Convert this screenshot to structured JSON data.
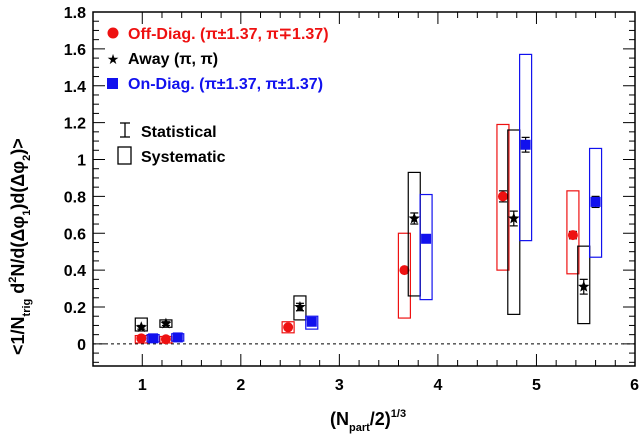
{
  "chart_data": {
    "type": "scatter",
    "xlabel": {
      "base": "(N",
      "sub": "part",
      "mid": "/2)",
      "sup": "1/3"
    },
    "ylabel": {
      "a": "<1/N",
      "a_sub": "trig",
      "b": " d",
      "b_sup": "2",
      "c": "N/d(Δφ",
      "c_sub": "1",
      "d": ")d(Δφ",
      "d_sub": "2",
      "e": ")>"
    },
    "xlim": [
      0.5,
      6
    ],
    "ylim": [
      -0.12,
      1.8
    ],
    "xticks": [
      "1",
      "2",
      "3",
      "4",
      "5",
      "6"
    ],
    "yticks": [
      "0",
      "0.2",
      "0.4",
      "0.6",
      "0.8",
      "1",
      "1.2",
      "1.4",
      "1.6",
      "1.8"
    ],
    "reference_line": {
      "y": 0,
      "style": "dashed"
    },
    "legend_position": "top-left",
    "series": [
      {
        "name": "Off-Diag.",
        "name_suffix": "(π±1.37, π∓1.37)",
        "color": "#ee1111",
        "marker": "circle",
        "points": [
          {
            "x": 0.99,
            "y": 0.03,
            "stat": 0.008,
            "sys": [
              0.005,
              0.045
            ]
          },
          {
            "x": 1.24,
            "y": 0.025,
            "stat": 0.008,
            "sys": [
              0.005,
              0.04
            ]
          },
          {
            "x": 2.48,
            "y": 0.09,
            "stat": 0.01,
            "sys": [
              0.06,
              0.12
            ]
          },
          {
            "x": 3.66,
            "y": 0.4,
            "stat": 0.01,
            "sys": [
              0.14,
              0.6
            ]
          },
          {
            "x": 4.66,
            "y": 0.8,
            "stat": 0.03,
            "sys": [
              0.4,
              1.19
            ]
          },
          {
            "x": 5.37,
            "y": 0.59,
            "stat": 0.02,
            "sys": [
              0.38,
              0.83
            ]
          }
        ]
      },
      {
        "name": "Away",
        "name_suffix": "(π, π)",
        "color": "#000000",
        "marker": "star",
        "points": [
          {
            "x": 0.99,
            "y": 0.09,
            "stat": 0.01,
            "sys": [
              0.07,
              0.14
            ]
          },
          {
            "x": 1.24,
            "y": 0.11,
            "stat": 0.01,
            "sys": [
              0.09,
              0.13
            ]
          },
          {
            "x": 2.6,
            "y": 0.2,
            "stat": 0.02,
            "sys": [
              0.13,
              0.26
            ]
          },
          {
            "x": 3.76,
            "y": 0.68,
            "stat": 0.03,
            "sys": [
              0.26,
              0.93
            ]
          },
          {
            "x": 4.77,
            "y": 0.68,
            "stat": 0.04,
            "sys": [
              0.16,
              1.16
            ]
          },
          {
            "x": 5.48,
            "y": 0.31,
            "stat": 0.04,
            "sys": [
              0.11,
              0.53
            ]
          }
        ]
      },
      {
        "name": "On-Diag.",
        "name_suffix": "(π±1.37, π±1.37)",
        "color": "#1111ee",
        "marker": "square",
        "points": [
          {
            "x": 1.11,
            "y": 0.03,
            "stat": 0.008,
            "sys": [
              0.01,
              0.05
            ]
          },
          {
            "x": 1.36,
            "y": 0.035,
            "stat": 0.008,
            "sys": [
              0.015,
              0.055
            ]
          },
          {
            "x": 2.72,
            "y": 0.12,
            "stat": 0.01,
            "sys": [
              0.08,
              0.15
            ]
          },
          {
            "x": 3.88,
            "y": 0.57,
            "stat": 0.02,
            "sys": [
              0.24,
              0.81
            ]
          },
          {
            "x": 4.89,
            "y": 1.08,
            "stat": 0.04,
            "sys": [
              0.56,
              1.57
            ]
          },
          {
            "x": 5.6,
            "y": 0.77,
            "stat": 0.03,
            "sys": [
              0.47,
              1.06
            ]
          }
        ]
      }
    ],
    "error_legend": [
      {
        "key": "stat",
        "label": "Statistical"
      },
      {
        "key": "sys",
        "label": "Systematic"
      }
    ]
  }
}
